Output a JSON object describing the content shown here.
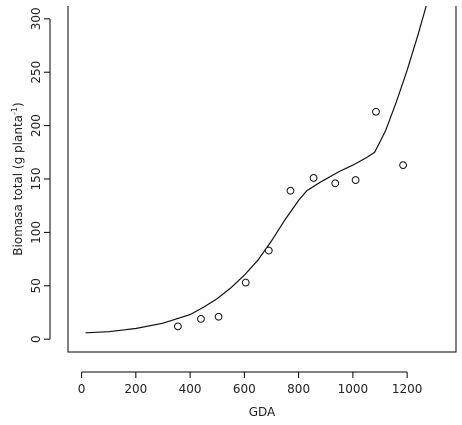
{
  "chart_data": {
    "type": "scatter",
    "xlabel": "GDA",
    "ylabel_main": "Biomasa total (g planta",
    "ylabel_sup": "-1",
    "ylabel_tail": ")",
    "xlim": [
      -50,
      1380
    ],
    "ylim": [
      -12,
      312
    ],
    "xticks": [
      0,
      200,
      400,
      600,
      800,
      1000,
      1200
    ],
    "yticks": [
      0,
      50,
      100,
      150,
      200,
      250,
      300
    ],
    "points": [
      {
        "x": 355,
        "y": 12
      },
      {
        "x": 440,
        "y": 19
      },
      {
        "x": 505,
        "y": 21
      },
      {
        "x": 605,
        "y": 53
      },
      {
        "x": 690,
        "y": 83
      },
      {
        "x": 770,
        "y": 139
      },
      {
        "x": 855,
        "y": 151
      },
      {
        "x": 935,
        "y": 146
      },
      {
        "x": 1010,
        "y": 149
      },
      {
        "x": 1085,
        "y": 213
      },
      {
        "x": 1185,
        "y": 163
      }
    ],
    "fitted_curve": [
      {
        "x": 15,
        "y": 6
      },
      {
        "x": 100,
        "y": 7
      },
      {
        "x": 200,
        "y": 10
      },
      {
        "x": 300,
        "y": 15
      },
      {
        "x": 400,
        "y": 23
      },
      {
        "x": 450,
        "y": 30
      },
      {
        "x": 500,
        "y": 38
      },
      {
        "x": 550,
        "y": 48
      },
      {
        "x": 600,
        "y": 60
      },
      {
        "x": 650,
        "y": 74
      },
      {
        "x": 700,
        "y": 92
      },
      {
        "x": 750,
        "y": 112
      },
      {
        "x": 800,
        "y": 130
      },
      {
        "x": 830,
        "y": 139
      },
      {
        "x": 880,
        "y": 147
      },
      {
        "x": 950,
        "y": 157
      },
      {
        "x": 1000,
        "y": 163
      },
      {
        "x": 1050,
        "y": 170
      },
      {
        "x": 1080,
        "y": 175
      },
      {
        "x": 1120,
        "y": 195
      },
      {
        "x": 1160,
        "y": 222
      },
      {
        "x": 1200,
        "y": 252
      },
      {
        "x": 1240,
        "y": 285
      },
      {
        "x": 1270,
        "y": 312
      }
    ],
    "grid": false,
    "frame": "left-bottom-right open top"
  }
}
